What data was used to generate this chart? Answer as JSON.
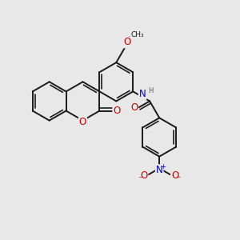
{
  "bg_color": "#e8e8e8",
  "bond_color": "#1a1a1a",
  "bond_width": 1.4,
  "atom_colors": {
    "O": "#cc0000",
    "N": "#0000cc",
    "H": "#555555",
    "C": "#1a1a1a"
  },
  "font_size": 8.5
}
